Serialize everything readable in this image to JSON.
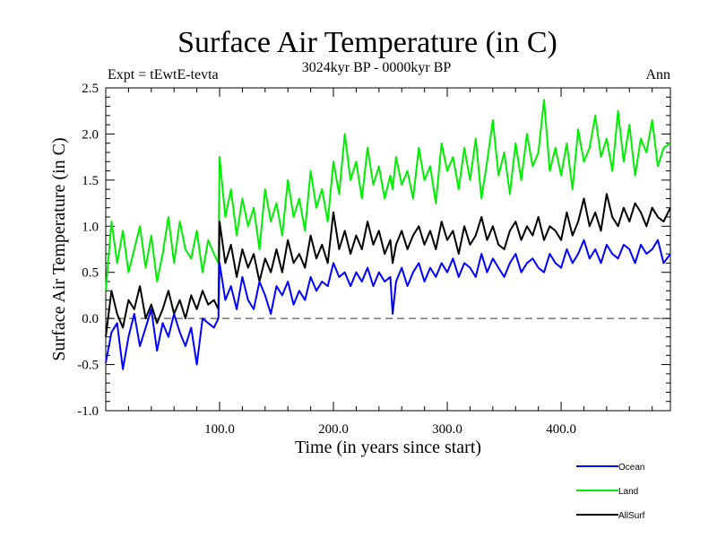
{
  "chart_data": {
    "type": "line",
    "title": "Surface Air Temperature (in C)",
    "subtitle": "3024kyr BP - 0000kyr BP",
    "left_label": "Expt = tEwtE-tevta",
    "right_label": "Ann",
    "xlabel": "Time (in years since start)",
    "ylabel": "Surface Air Temperature (in C)",
    "xlim": [
      0,
      496
    ],
    "ylim": [
      -1.0,
      2.5
    ],
    "x_ticks": [
      100,
      200,
      300,
      400
    ],
    "x_tick_labels": [
      "100.0",
      "200.0",
      "300.0",
      "400.0"
    ],
    "y_ticks": [
      -1.0,
      -0.5,
      0.0,
      0.5,
      1.0,
      1.5,
      2.0,
      2.5
    ],
    "y_tick_labels": [
      "-1.0",
      "-0.5",
      "0.0",
      "0.5",
      "1.0",
      "1.5",
      "2.0",
      "2.5"
    ],
    "reference_line": {
      "y": 0.0,
      "style": "dashed"
    },
    "legend_position": "bottom-right, below plot",
    "x": [
      0,
      5,
      10,
      15,
      20,
      25,
      30,
      35,
      40,
      45,
      50,
      55,
      60,
      65,
      70,
      75,
      80,
      85,
      90,
      95,
      99,
      100,
      105,
      110,
      115,
      120,
      125,
      130,
      135,
      140,
      145,
      150,
      155,
      160,
      165,
      170,
      175,
      180,
      185,
      190,
      195,
      200,
      205,
      210,
      215,
      220,
      225,
      230,
      235,
      240,
      245,
      250,
      252,
      255,
      260,
      265,
      270,
      275,
      280,
      285,
      290,
      295,
      300,
      305,
      310,
      315,
      320,
      325,
      330,
      335,
      340,
      345,
      350,
      355,
      360,
      365,
      370,
      375,
      380,
      385,
      390,
      395,
      400,
      405,
      410,
      415,
      420,
      425,
      430,
      435,
      440,
      445,
      450,
      455,
      460,
      465,
      470,
      475,
      480,
      485,
      490,
      496
    ],
    "series": [
      {
        "name": "Ocean",
        "color": "#0000ff",
        "values": [
          -0.48,
          -0.15,
          -0.05,
          -0.55,
          -0.2,
          0.05,
          -0.3,
          -0.1,
          0.1,
          -0.35,
          -0.05,
          -0.2,
          0.05,
          -0.15,
          -0.3,
          -0.1,
          -0.5,
          0.0,
          -0.05,
          -0.1,
          0.0,
          0.6,
          0.2,
          0.35,
          0.1,
          0.45,
          0.2,
          0.1,
          0.4,
          0.25,
          0.05,
          0.35,
          0.25,
          0.4,
          0.15,
          0.3,
          0.2,
          0.45,
          0.3,
          0.4,
          0.35,
          0.6,
          0.45,
          0.5,
          0.35,
          0.5,
          0.4,
          0.55,
          0.35,
          0.5,
          0.4,
          0.45,
          0.05,
          0.4,
          0.55,
          0.35,
          0.5,
          0.6,
          0.4,
          0.55,
          0.45,
          0.6,
          0.5,
          0.65,
          0.45,
          0.6,
          0.55,
          0.45,
          0.7,
          0.5,
          0.65,
          0.55,
          0.45,
          0.6,
          0.7,
          0.5,
          0.6,
          0.65,
          0.55,
          0.5,
          0.7,
          0.6,
          0.55,
          0.75,
          0.6,
          0.7,
          0.85,
          0.65,
          0.75,
          0.6,
          0.8,
          0.7,
          0.65,
          0.8,
          0.75,
          0.6,
          0.8,
          0.7,
          0.75,
          0.85,
          0.6,
          0.7
        ]
      },
      {
        "name": "Land",
        "color": "#00ee00",
        "values": [
          0.3,
          1.05,
          0.6,
          0.95,
          0.5,
          0.75,
          1.0,
          0.55,
          0.9,
          0.4,
          0.7,
          1.1,
          0.6,
          1.05,
          0.75,
          0.65,
          0.95,
          0.5,
          0.85,
          0.7,
          0.6,
          1.75,
          1.1,
          1.4,
          0.9,
          1.3,
          1.0,
          1.2,
          0.75,
          1.4,
          1.05,
          1.25,
          0.9,
          1.5,
          1.1,
          1.3,
          0.95,
          1.6,
          1.2,
          1.4,
          1.05,
          1.7,
          1.35,
          2.0,
          1.5,
          1.7,
          1.3,
          1.85,
          1.45,
          1.65,
          1.3,
          1.55,
          1.4,
          1.75,
          1.45,
          1.6,
          1.3,
          1.85,
          1.5,
          1.65,
          1.25,
          1.9,
          1.6,
          1.75,
          1.4,
          1.85,
          1.5,
          1.95,
          1.3,
          1.7,
          2.15,
          1.55,
          1.8,
          1.35,
          1.9,
          1.5,
          2.0,
          1.65,
          1.8,
          2.37,
          1.6,
          1.85,
          1.55,
          1.9,
          1.4,
          2.05,
          1.7,
          1.85,
          2.2,
          1.75,
          1.95,
          1.6,
          2.25,
          1.7,
          2.1,
          1.55,
          1.95,
          1.8,
          2.15,
          1.65,
          1.85,
          1.9
        ]
      },
      {
        "name": "AllSurf",
        "color": "#000000",
        "values": [
          -0.2,
          0.3,
          0.05,
          -0.1,
          0.2,
          0.1,
          0.35,
          0.0,
          0.15,
          -0.05,
          0.1,
          0.3,
          0.05,
          0.2,
          0.0,
          0.25,
          0.1,
          0.3,
          0.15,
          0.2,
          0.1,
          1.05,
          0.6,
          0.8,
          0.45,
          0.75,
          0.55,
          0.7,
          0.4,
          0.65,
          0.5,
          0.75,
          0.5,
          0.85,
          0.6,
          0.7,
          0.55,
          0.9,
          0.65,
          0.8,
          0.6,
          1.15,
          0.75,
          0.95,
          0.7,
          0.9,
          0.75,
          1.05,
          0.8,
          0.95,
          0.7,
          0.85,
          0.6,
          0.8,
          0.95,
          0.75,
          0.9,
          1.0,
          0.8,
          0.95,
          0.75,
          1.05,
          0.85,
          0.95,
          0.7,
          1.0,
          0.8,
          0.9,
          1.1,
          0.85,
          1.0,
          0.8,
          0.75,
          0.95,
          1.05,
          0.85,
          1.0,
          0.9,
          1.1,
          0.85,
          1.0,
          0.95,
          0.85,
          1.15,
          0.9,
          1.05,
          1.3,
          1.0,
          1.15,
          0.95,
          1.35,
          1.1,
          1.0,
          1.2,
          1.05,
          1.25,
          1.15,
          1.0,
          1.2,
          1.1,
          1.05,
          1.2
        ]
      }
    ]
  }
}
